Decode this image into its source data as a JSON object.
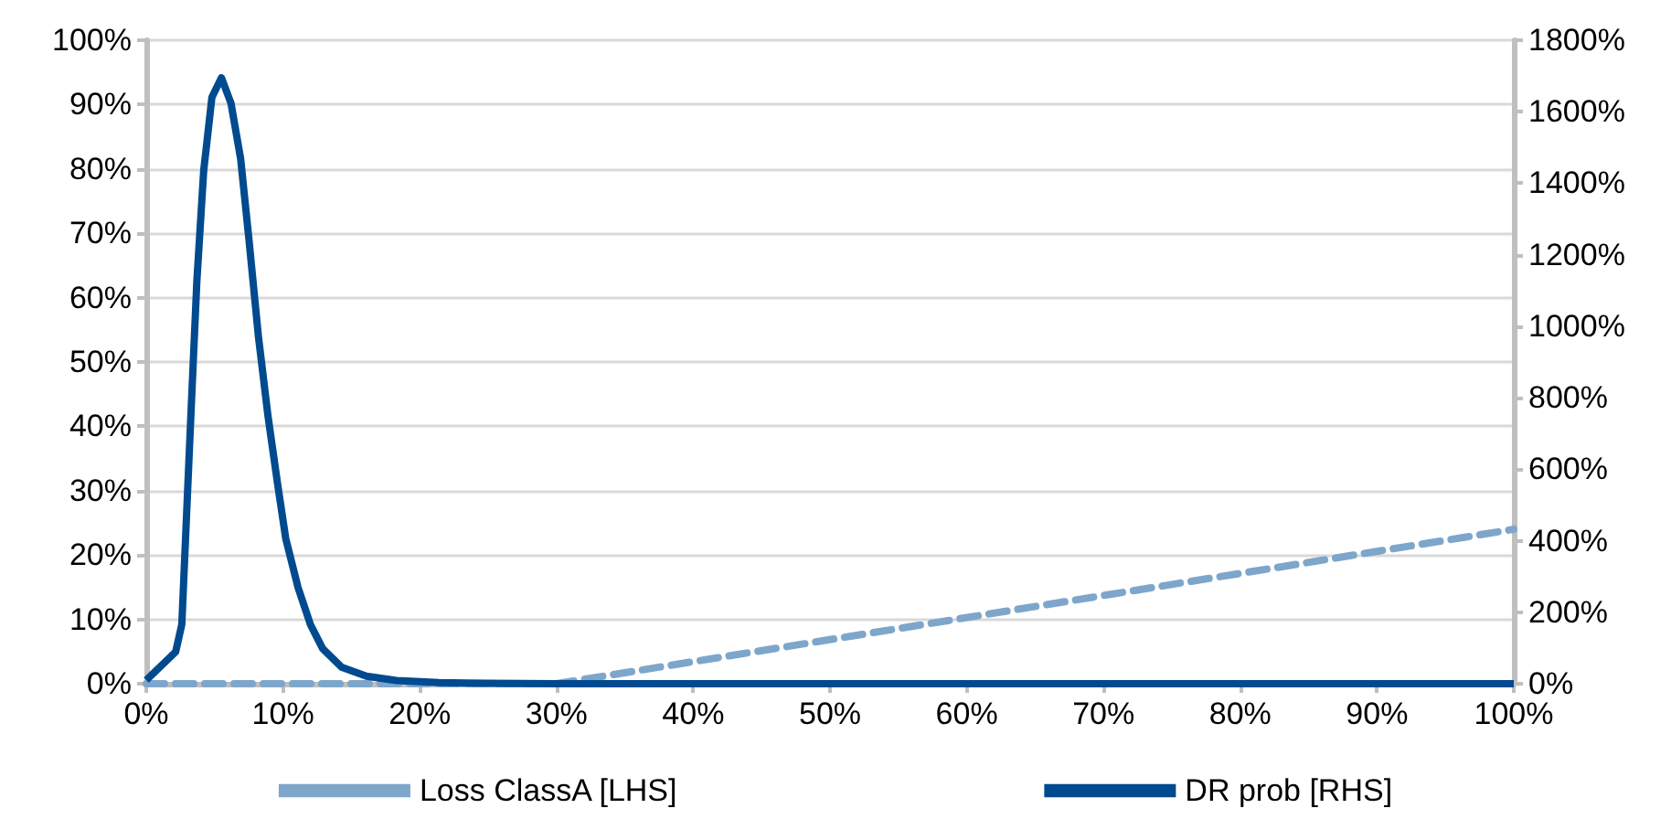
{
  "chart_data": {
    "type": "line",
    "series": [
      {
        "name": "Loss ClassA [LHS]",
        "color": "#7ea6cb",
        "line_style": "dashed",
        "x": [
          0,
          30,
          100
        ],
        "values": [
          0,
          0,
          24
        ]
      },
      {
        "name": "DR prob [RHS]",
        "color": "#004a8f",
        "line_style": "solid",
        "axis": "y2",
        "x": [
          0,
          2.15,
          2.6,
          3.3,
          3.7,
          4.2,
          4.8,
          5.5,
          6.2,
          6.9,
          7.5,
          8.2,
          8.9,
          9.6,
          10.2,
          11.1,
          12,
          12.9,
          14.3,
          16.1,
          18.3,
          21.4,
          25,
          30,
          100
        ],
        "values": [
          10,
          89,
          166,
          783,
          1126,
          1435,
          1640,
          1695,
          1623,
          1469,
          1246,
          972,
          749,
          560,
          406,
          269,
          166,
          98,
          46,
          21,
          9,
          3,
          1,
          0,
          0
        ]
      }
    ],
    "xlim": [
      0,
      100
    ],
    "xticks": [
      {
        "value": 0,
        "label": "0%"
      },
      {
        "value": 10,
        "label": "10%"
      },
      {
        "value": 20,
        "label": "20%"
      },
      {
        "value": 30,
        "label": "30%"
      },
      {
        "value": 40,
        "label": "40%"
      },
      {
        "value": 50,
        "label": "50%"
      },
      {
        "value": 60,
        "label": "60%"
      },
      {
        "value": 70,
        "label": "70%"
      },
      {
        "value": 80,
        "label": "80%"
      },
      {
        "value": 90,
        "label": "90%"
      },
      {
        "value": 100,
        "label": "100%"
      }
    ],
    "ylim": [
      0,
      100
    ],
    "yticks": [
      {
        "value": 0,
        "label": "0%"
      },
      {
        "value": 10,
        "label": "10%"
      },
      {
        "value": 20,
        "label": "20%"
      },
      {
        "value": 30,
        "label": "30%"
      },
      {
        "value": 40,
        "label": "40%"
      },
      {
        "value": 50,
        "label": "50%"
      },
      {
        "value": 60,
        "label": "60%"
      },
      {
        "value": 70,
        "label": "70%"
      },
      {
        "value": 80,
        "label": "80%"
      },
      {
        "value": 90,
        "label": "90%"
      },
      {
        "value": 100,
        "label": "100%"
      }
    ],
    "y2lim": [
      0,
      1800
    ],
    "y2ticks": [
      {
        "value": 0,
        "label": "0%"
      },
      {
        "value": 200,
        "label": "200%"
      },
      {
        "value": 400,
        "label": "400%"
      },
      {
        "value": 600,
        "label": "600%"
      },
      {
        "value": 800,
        "label": "800%"
      },
      {
        "value": 1000,
        "label": "1000%"
      },
      {
        "value": 1200,
        "label": "1200%"
      },
      {
        "value": 1400,
        "label": "1400%"
      },
      {
        "value": 1600,
        "label": "1600%"
      },
      {
        "value": 1800,
        "label": "1800%"
      }
    ],
    "grid": "y",
    "legend": "bottom",
    "marker": "none"
  }
}
